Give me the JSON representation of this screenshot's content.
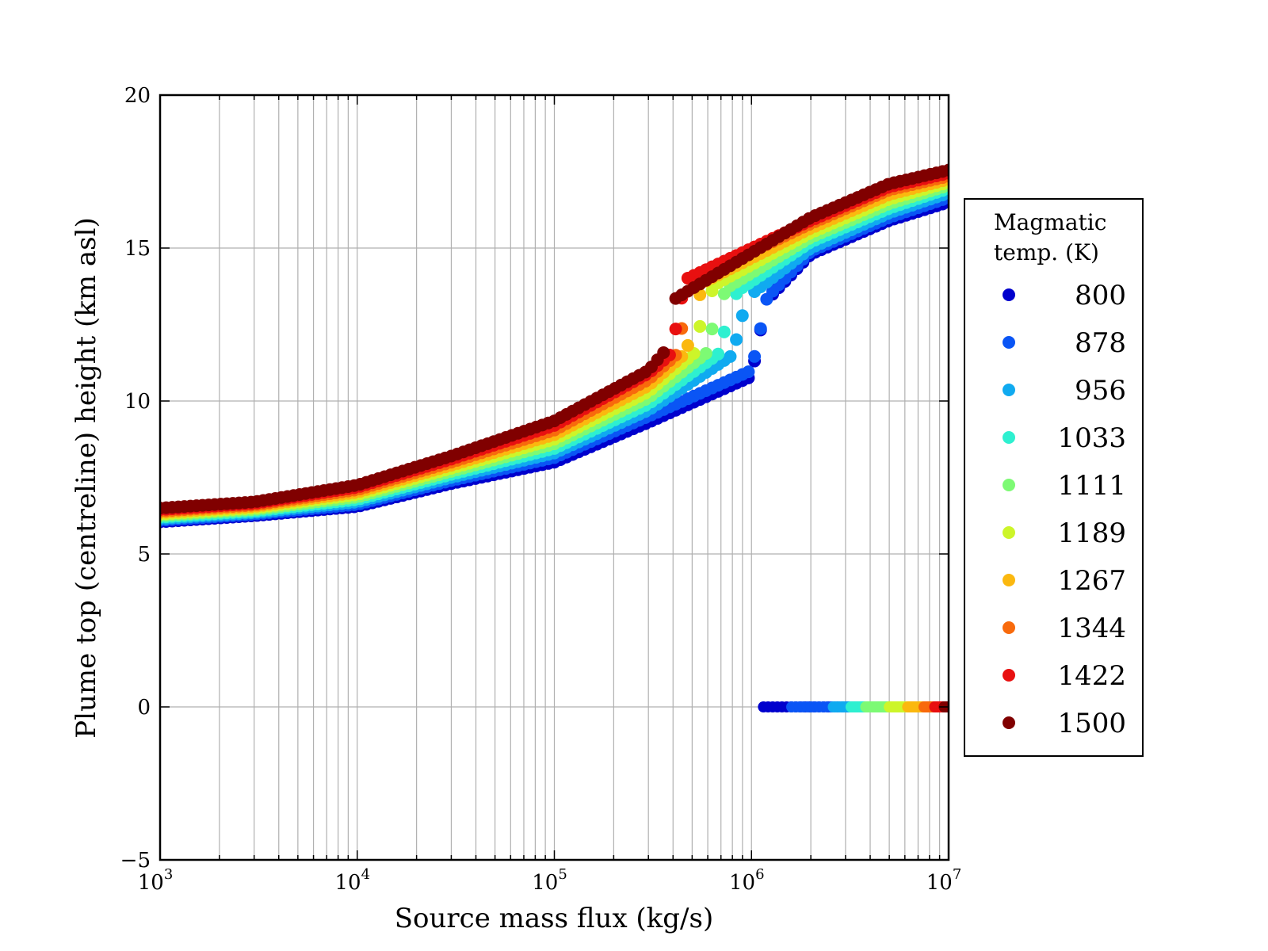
{
  "chart_data": {
    "type": "scatter",
    "title": "",
    "xlabel": "Source mass flux (kg/s)",
    "ylabel": "Plume top (centreline) height (km asl)",
    "xscale": "log",
    "xlim": [
      1000,
      10000000
    ],
    "ylim": [
      -5,
      20
    ],
    "xticks": [
      {
        "base": "10",
        "exp": "3"
      },
      {
        "base": "10",
        "exp": "4"
      },
      {
        "base": "10",
        "exp": "5"
      },
      {
        "base": "10",
        "exp": "6"
      },
      {
        "base": "10",
        "exp": "7"
      }
    ],
    "yticks": [
      "−5",
      "0",
      "5",
      "10",
      "15",
      "20"
    ],
    "grid": true,
    "legend": {
      "title_line1": "Magmatic",
      "title_line2": "temp. (K)",
      "placement": "right, outside axes"
    },
    "series": [
      {
        "name": "800",
        "color": "#0000cd",
        "offset": -0.45,
        "collapse_start": 1150000,
        "low_branch_start": 1150000,
        "points": [
          [
            1000,
            6.05
          ],
          [
            3000,
            6.25
          ],
          [
            10000,
            6.55
          ],
          [
            30000,
            7.3
          ],
          [
            100000,
            8.0
          ],
          [
            300000,
            9.3
          ],
          [
            1000000,
            10.8
          ],
          [
            1150000,
            12.8
          ],
          [
            1200000,
            13.3
          ],
          [
            2000000,
            14.8
          ],
          [
            5000000,
            15.9
          ],
          [
            10000000,
            16.5
          ]
        ]
      },
      {
        "name": "878",
        "color": "#0a55f5",
        "offset": -0.35,
        "collapse_start": 1200000,
        "low_branch_start": 1600000,
        "points": [
          [
            1000,
            6.1
          ],
          [
            3000,
            6.3
          ],
          [
            10000,
            6.62
          ],
          [
            30000,
            7.4
          ],
          [
            100000,
            8.15
          ],
          [
            300000,
            9.5
          ],
          [
            1000000,
            11.0
          ],
          [
            1150000,
            12.8
          ],
          [
            1200000,
            13.4
          ],
          [
            2000000,
            14.9
          ],
          [
            5000000,
            16.0
          ],
          [
            10000000,
            16.65
          ]
        ]
      },
      {
        "name": "956",
        "color": "#10aaf0",
        "offset": -0.25,
        "collapse_start": 1200000,
        "low_branch_start": 2600000,
        "points": [
          [
            1000,
            6.15
          ],
          [
            3000,
            6.35
          ],
          [
            10000,
            6.7
          ],
          [
            30000,
            7.5
          ],
          [
            100000,
            8.3
          ],
          [
            300000,
            9.7
          ],
          [
            800000,
            11.5
          ],
          [
            900000,
            12.8
          ],
          [
            1000000,
            13.5
          ],
          [
            2000000,
            15.0
          ],
          [
            5000000,
            16.15
          ],
          [
            10000000,
            16.8
          ]
        ]
      },
      {
        "name": "1033",
        "color": "#2ef0d0",
        "offset": -0.15,
        "collapse_start": 1200000,
        "low_branch_start": 3200000,
        "points": [
          [
            1000,
            6.2
          ],
          [
            3000,
            6.4
          ],
          [
            10000,
            6.78
          ],
          [
            30000,
            7.6
          ],
          [
            100000,
            8.45
          ],
          [
            300000,
            9.9
          ],
          [
            700000,
            11.6
          ],
          [
            750000,
            12.8
          ],
          [
            850000,
            13.6
          ],
          [
            2000000,
            15.2
          ],
          [
            5000000,
            16.3
          ],
          [
            10000000,
            16.95
          ]
        ]
      },
      {
        "name": "1111",
        "color": "#7dfa74",
        "offset": -0.05,
        "collapse_start": 1200000,
        "low_branch_start": 3800000,
        "points": [
          [
            1000,
            6.25
          ],
          [
            3000,
            6.45
          ],
          [
            10000,
            6.86
          ],
          [
            30000,
            7.7
          ],
          [
            100000,
            8.6
          ],
          [
            300000,
            10.1
          ],
          [
            600000,
            11.6
          ],
          [
            650000,
            12.8
          ],
          [
            750000,
            13.7
          ],
          [
            2000000,
            15.35
          ],
          [
            5000000,
            16.45
          ],
          [
            10000000,
            17.05
          ]
        ]
      },
      {
        "name": "1189",
        "color": "#cdf52a",
        "offset": 0.05,
        "collapse_start": 1200000,
        "low_branch_start": 5000000,
        "points": [
          [
            1000,
            6.3
          ],
          [
            3000,
            6.5
          ],
          [
            10000,
            6.94
          ],
          [
            30000,
            7.8
          ],
          [
            100000,
            8.75
          ],
          [
            300000,
            10.3
          ],
          [
            520000,
            11.6
          ],
          [
            560000,
            12.8
          ],
          [
            650000,
            13.8
          ],
          [
            2000000,
            15.5
          ],
          [
            5000000,
            16.6
          ],
          [
            10000000,
            17.15
          ]
        ]
      },
      {
        "name": "1267",
        "color": "#fbb80f",
        "offset": 0.15,
        "collapse_start": 1200000,
        "low_branch_start": 6200000,
        "points": [
          [
            1000,
            6.35
          ],
          [
            3000,
            6.55
          ],
          [
            10000,
            7.02
          ],
          [
            30000,
            7.9
          ],
          [
            100000,
            8.9
          ],
          [
            300000,
            10.5
          ],
          [
            470000,
            11.6
          ],
          [
            500000,
            12.8
          ],
          [
            580000,
            13.9
          ],
          [
            2000000,
            15.65
          ],
          [
            5000000,
            16.75
          ],
          [
            10000000,
            17.25
          ]
        ]
      },
      {
        "name": "1344",
        "color": "#f86a0c",
        "offset": 0.25,
        "collapse_start": 1200000,
        "low_branch_start": 7500000,
        "points": [
          [
            1000,
            6.4
          ],
          [
            3000,
            6.6
          ],
          [
            10000,
            7.1
          ],
          [
            30000,
            8.0
          ],
          [
            100000,
            9.05
          ],
          [
            300000,
            10.7
          ],
          [
            430000,
            11.6
          ],
          [
            450000,
            12.8
          ],
          [
            520000,
            14.0
          ],
          [
            2000000,
            15.8
          ],
          [
            5000000,
            16.9
          ],
          [
            10000000,
            17.35
          ]
        ]
      },
      {
        "name": "1422",
        "color": "#e81010",
        "offset": 0.35,
        "collapse_start": 1200000,
        "low_branch_start": 8500000,
        "points": [
          [
            1000,
            6.45
          ],
          [
            3000,
            6.65
          ],
          [
            10000,
            7.18
          ],
          [
            30000,
            8.1
          ],
          [
            100000,
            9.2
          ],
          [
            300000,
            10.9
          ],
          [
            400000,
            11.6
          ],
          [
            420000,
            12.8
          ],
          [
            470000,
            14.0
          ],
          [
            2000000,
            15.9
          ],
          [
            5000000,
            17.0
          ],
          [
            10000000,
            17.45
          ]
        ]
      },
      {
        "name": "1500",
        "color": "#800000",
        "offset": 0.45,
        "collapse_start": 1200000,
        "low_branch_start": 9500000,
        "points": [
          [
            1000,
            6.5
          ],
          [
            3000,
            6.7
          ],
          [
            10000,
            7.25
          ],
          [
            30000,
            8.2
          ],
          [
            100000,
            9.35
          ],
          [
            300000,
            11.0
          ],
          [
            360000,
            11.6
          ],
          [
            380000,
            12.8
          ],
          [
            400000,
            13.3
          ],
          [
            2000000,
            16.0
          ],
          [
            5000000,
            17.1
          ],
          [
            10000000,
            17.55
          ]
        ]
      }
    ],
    "gap_band": [
      12.8,
      13.3
    ]
  }
}
